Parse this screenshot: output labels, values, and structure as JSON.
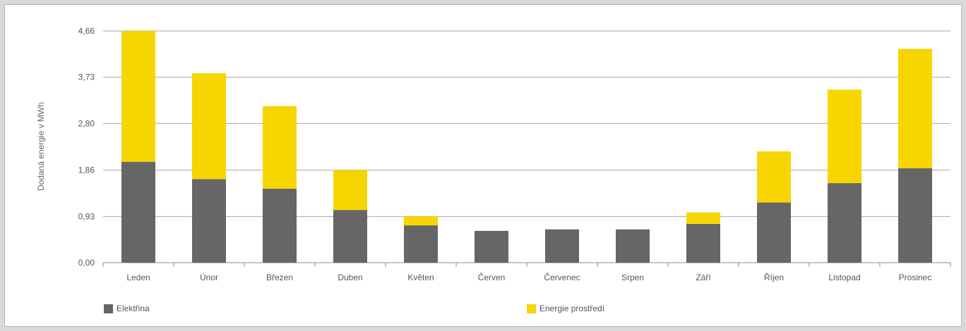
{
  "chart_data": {
    "type": "bar",
    "stacked": true,
    "categories": [
      "Leden",
      "Únor",
      "Březen",
      "Duben",
      "Květen",
      "Červen",
      "Červenec",
      "Srpen",
      "Září",
      "Říjen",
      "Listopad",
      "Prosinec"
    ],
    "series": [
      {
        "name": "Elektřina",
        "color": "#666666",
        "values": [
          2.03,
          1.68,
          1.49,
          1.06,
          0.75,
          0.64,
          0.67,
          0.67,
          0.78,
          1.21,
          1.6,
          1.9
        ]
      },
      {
        "name": "Energie prostředí",
        "color": "#f7d500",
        "values": [
          2.63,
          2.13,
          1.66,
          0.8,
          0.18,
          0.0,
          0.0,
          0.0,
          0.23,
          1.03,
          1.88,
          2.4
        ]
      }
    ],
    "ylabel": "Dodaná energie v MWh",
    "yticks": [
      "0,00",
      "0,93",
      "1,86",
      "2,80",
      "3,73",
      "4,66"
    ],
    "ytick_values": [
      0,
      0.93,
      1.86,
      2.8,
      3.73,
      4.66
    ],
    "ylim": [
      0,
      4.66
    ],
    "grid": true,
    "legend_position": "bottom"
  }
}
